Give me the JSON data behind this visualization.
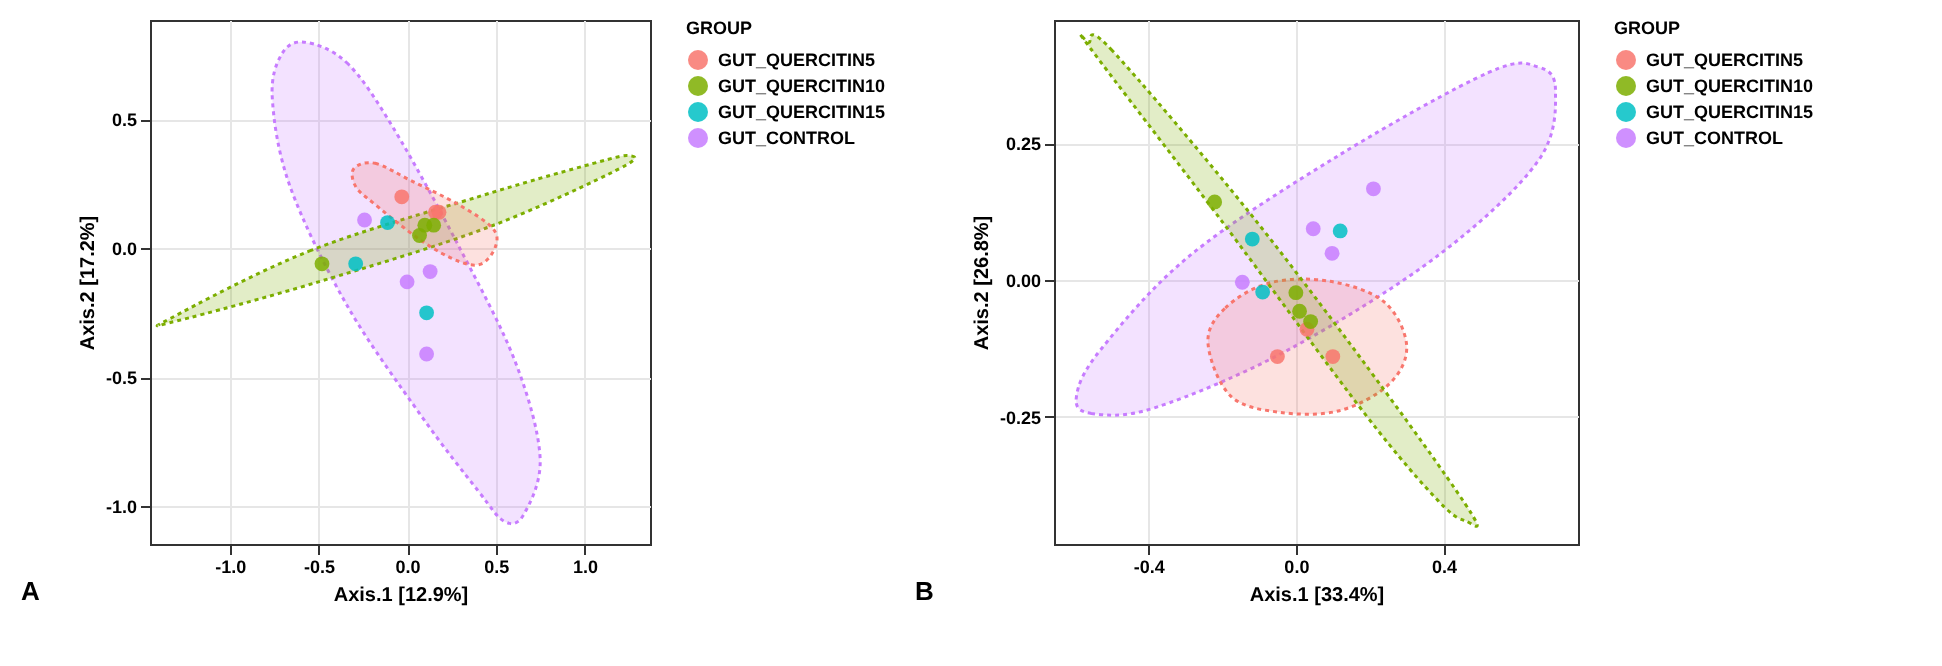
{
  "chart_data": [
    {
      "type": "scatter",
      "xlabel": "Axis.1 [12.9%]",
      "ylabel": "Axis.2 [17.2%]",
      "legend_title": "GROUP",
      "legend": "right",
      "grid": true,
      "marker": "circle",
      "line_style": "dotted",
      "annotations": [
        "A"
      ],
      "xlim": [
        -1.45,
        1.37
      ],
      "ylim": [
        -1.147,
        0.886
      ],
      "xticks": [
        {
          "value": -1,
          "label": "-1.0"
        },
        {
          "value": -0.5,
          "label": "-0.5"
        },
        {
          "value": 0,
          "label": "0.0"
        },
        {
          "value": 0.5,
          "label": "0.5"
        },
        {
          "value": 1,
          "label": "1.0"
        }
      ],
      "yticks": [
        {
          "value": -1,
          "label": "-1.0"
        },
        {
          "value": -0.5,
          "label": "-0.5"
        },
        {
          "value": 0,
          "label": "0.0"
        },
        {
          "value": 0.5,
          "label": "0.5"
        }
      ],
      "series": [
        {
          "type": "area",
          "marker": "none",
          "color": "#c77cff",
          "x": [
            -0.58,
            -0.34,
            -0.08,
            0.29,
            0.61,
            0.75,
            0.66,
            0.55,
            0.4,
            0.08,
            -0.34,
            -0.66,
            -0.76,
            -0.71
          ],
          "values": [
            0.8,
            0.72,
            0.47,
            0.01,
            -0.44,
            -0.81,
            -1.03,
            -1.06,
            -0.94,
            -0.65,
            -0.22,
            0.24,
            0.58,
            0.75
          ]
        },
        {
          "type": "area",
          "marker": "none",
          "color": "#7cae00",
          "x": [
            -1.33,
            -0.55,
            0.4,
            1.0,
            1.245,
            1.2,
            0.45,
            -0.5,
            -1.29
          ],
          "values": [
            -0.27,
            -0.01,
            0.2,
            0.32,
            0.36,
            0.31,
            0.08,
            -0.13,
            -0.28
          ]
        },
        {
          "type": "area",
          "marker": "none",
          "color": "#f8766d",
          "x": [
            -0.3,
            -0.18,
            0.03,
            0.29,
            0.48,
            0.5,
            0.42,
            0.29,
            0.08,
            -0.18,
            -0.29
          ],
          "values": [
            0.31,
            0.33,
            0.26,
            0.17,
            0.08,
            0.01,
            -0.06,
            -0.05,
            0.03,
            0.17,
            0.24
          ]
        },
        {
          "name": "GUT_QUERCITIN5",
          "color": "#f8766d",
          "x": [
            -0.03,
            0.16,
            0.18
          ],
          "values": [
            0.2,
            0.14,
            0.14
          ]
        },
        {
          "name": "GUT_QUERCITIN10",
          "color": "#7cae00",
          "x": [
            -0.48,
            0.07,
            0.1,
            0.15
          ],
          "values": [
            -0.06,
            0.05,
            0.09,
            0.09
          ]
        },
        {
          "name": "GUT_QUERCITIN15",
          "color": "#00bfc4",
          "x": [
            -0.29,
            -0.11,
            0.11
          ],
          "values": [
            -0.06,
            0.1,
            -0.25
          ]
        },
        {
          "name": "GUT_CONTROL",
          "color": "#c77cff",
          "x": [
            -0.24,
            0.0,
            0.13,
            0.11
          ],
          "values": [
            0.11,
            -0.13,
            -0.09,
            -0.41
          ]
        }
      ]
    },
    {
      "type": "scatter",
      "xlabel": "Axis.1 [33.4%]",
      "ylabel": "Axis.2 [26.8%]",
      "legend_title": "GROUP",
      "legend": "right",
      "grid": true,
      "marker": "circle",
      "line_style": "dotted",
      "annotations": [
        "B"
      ],
      "xlim": [
        -0.655,
        0.764
      ],
      "ylim": [
        -0.483,
        0.476
      ],
      "xticks": [
        {
          "value": -0.4,
          "label": "-0.4"
        },
        {
          "value": 0,
          "label": "0.0"
        },
        {
          "value": 0.4,
          "label": "0.4"
        }
      ],
      "yticks": [
        -0.25,
        {
          "value": 0,
          "label": "0.00"
        },
        0.25
      ],
      "series": [
        {
          "type": "area",
          "marker": "none",
          "color": "#c77cff",
          "x": [
            -0.594,
            -0.554,
            -0.379,
            -0.016,
            0.387,
            0.656,
            0.703,
            0.656,
            0.522,
            0.118,
            -0.285,
            -0.527
          ],
          "values": [
            -0.212,
            -0.244,
            -0.233,
            -0.126,
            0.046,
            0.218,
            0.347,
            0.39,
            0.38,
            0.229,
            0.046,
            -0.126
          ]
        },
        {
          "type": "area",
          "marker": "none",
          "color": "#f8766d",
          "x": [
            -0.238,
            -0.191,
            -0.07,
            0.091,
            0.239,
            0.3,
            0.253,
            0.118,
            -0.043,
            -0.177
          ],
          "values": [
            -0.115,
            -0.051,
            -0.005,
            -0.002,
            -0.04,
            -0.12,
            -0.19,
            -0.239,
            -0.242,
            -0.212
          ]
        },
        {
          "type": "area",
          "marker": "none",
          "color": "#7cae00",
          "x": [
            -0.56,
            -0.5,
            -0.124,
            0.239,
            0.475,
            0.461,
            0.387,
            0.186,
            -0.204,
            -0.554
          ],
          "values": [
            0.435,
            0.422,
            0.122,
            -0.201,
            -0.427,
            -0.441,
            -0.405,
            -0.244,
            0.111,
            0.422
          ]
        },
        {
          "name": "GUT_QUERCITIN5",
          "color": "#f8766d",
          "x": [
            -0.05,
            0.03,
            0.1
          ],
          "values": [
            -0.14,
            -0.09,
            -0.14
          ]
        },
        {
          "name": "GUT_QUERCITIN10",
          "color": "#7cae00",
          "x": [
            -0.22,
            0.0,
            0.01,
            0.04
          ],
          "values": [
            0.143,
            -0.023,
            -0.057,
            -0.076
          ]
        },
        {
          "name": "GUT_QUERCITIN15",
          "color": "#00bfc4",
          "x": [
            -0.118,
            -0.09,
            0.12
          ],
          "values": [
            0.075,
            -0.022,
            0.09
          ]
        },
        {
          "name": "GUT_CONTROL",
          "color": "#c77cff",
          "x": [
            0.21,
            0.047,
            0.098,
            -0.145
          ],
          "values": [
            0.167,
            0.094,
            0.049,
            -0.004
          ]
        }
      ]
    }
  ]
}
